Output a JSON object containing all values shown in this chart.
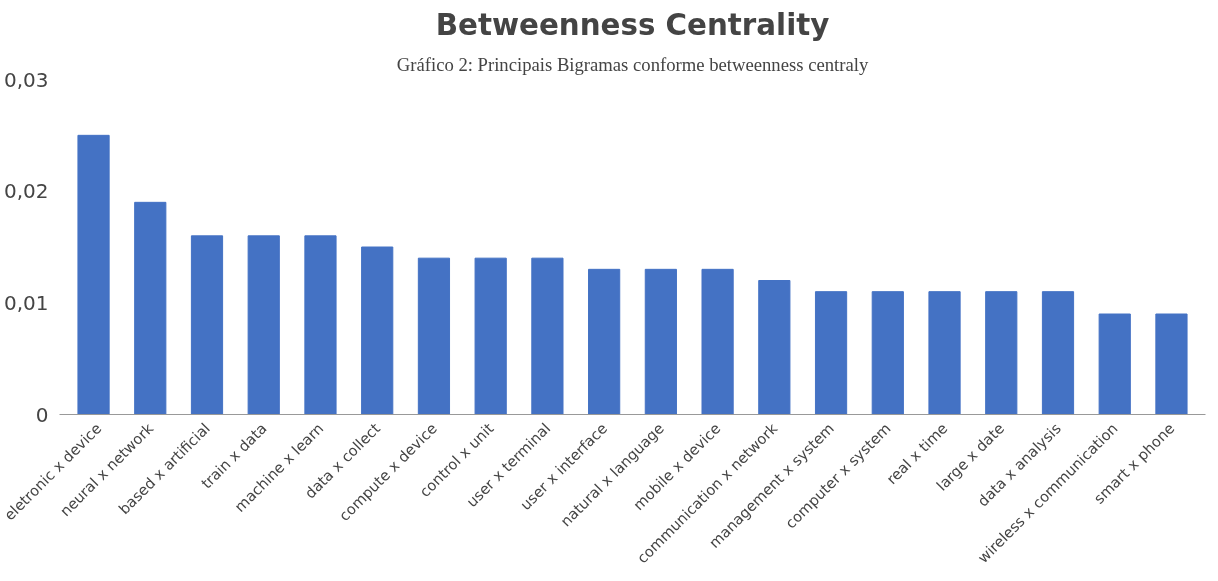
{
  "chart_data": {
    "type": "bar",
    "title": "Betweenness Centrality",
    "annotations": [
      "Gráfico 2: Principais Bigramas conforme betweenness centraly"
    ],
    "categories": [
      "eletronic x device",
      "neural x network",
      "based x artificial",
      "train x data",
      "machine x learn",
      "data x collect",
      "compute x device",
      "control x unit",
      "user x terminal",
      "user x interface",
      "natural x language",
      "mobile x device",
      "communication x network",
      "management x system",
      "computer x system",
      "real x time",
      "large x date",
      "data x analysis",
      "wireless x communication",
      "smart x phone"
    ],
    "series": [
      {
        "color": "#4472c4",
        "values": [
          0.025,
          0.019,
          0.016,
          0.016,
          0.016,
          0.015,
          0.014,
          0.014,
          0.014,
          0.013,
          0.013,
          0.013,
          0.012,
          0.011,
          0.011,
          0.011,
          0.011,
          0.011,
          0.009,
          0.009
        ]
      }
    ],
    "ylim": [
      0,
      0.03
    ],
    "yticks": [
      0,
      {
        "value": 0.01,
        "label": "0,01"
      },
      {
        "value": 0.02,
        "label": "0,02"
      },
      {
        "value": 0.03,
        "label": "0,03"
      }
    ],
    "grid": false
  }
}
